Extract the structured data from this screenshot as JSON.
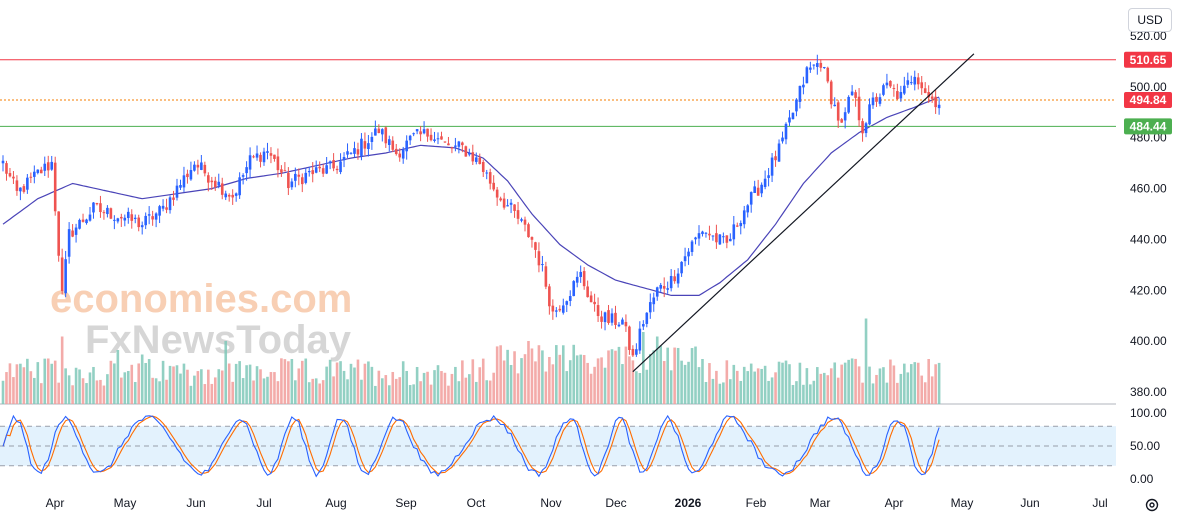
{
  "currency_button": "USD",
  "settings_icon": "gear-icon",
  "watermark": {
    "line1": "economies.com",
    "line2": "FxNewsToday"
  },
  "colors": {
    "up": "#2962ff",
    "down": "#ef5350",
    "ma": "#4a44b8",
    "resistance": "#f23645",
    "support": "#4caf50",
    "current": "#f57c00",
    "stoch_k": "#2962ff",
    "stoch_d": "#ff6d00",
    "vol_up": "#7fc8b8",
    "vol_down": "#f19c9a",
    "stoch_band": "#e3f2fd"
  },
  "chart_data": {
    "type": "candlestick",
    "price_axis": {
      "min": 380,
      "max": 520,
      "ticks": [
        380,
        400,
        420,
        440,
        460,
        480,
        500,
        520
      ],
      "tick_labels": [
        "380.00",
        "400.00",
        "420.00",
        "440.00",
        "460.00",
        "480.00",
        "500.00",
        "520.00"
      ]
    },
    "time_axis": {
      "labels": [
        "Apr",
        "May",
        "Jun",
        "Jul",
        "Aug",
        "Sep",
        "Oct",
        "Nov",
        "Dec",
        "2026",
        "Feb",
        "Mar",
        "Apr",
        "May",
        "Jun",
        "Jul"
      ]
    },
    "price_tags": [
      {
        "name": "resistance",
        "label": "510.65",
        "value": 510.65,
        "color": "#f23645"
      },
      {
        "name": "current",
        "label": "494.84",
        "value": 494.84,
        "color": "#f23645"
      },
      {
        "name": "support",
        "label": "484.44",
        "value": 484.44,
        "color": "#4caf50"
      }
    ],
    "horizontal_lines": [
      {
        "name": "resistance",
        "value": 510.65,
        "style": "solid",
        "color": "#f23645"
      },
      {
        "name": "current",
        "value": 494.84,
        "style": "dotted",
        "color": "#f57c00"
      },
      {
        "name": "support",
        "value": 484.44,
        "style": "solid",
        "color": "#4caf50"
      }
    ],
    "trendline": {
      "from": {
        "bar": 181,
        "price": 388
      },
      "to": {
        "bar": 279,
        "price": 513
      }
    },
    "price_anchors": [
      [
        0,
        470
      ],
      [
        4,
        458
      ],
      [
        10,
        466
      ],
      [
        14,
        470
      ],
      [
        17,
        418
      ],
      [
        19,
        442
      ],
      [
        26,
        452
      ],
      [
        34,
        449
      ],
      [
        40,
        446
      ],
      [
        46,
        452
      ],
      [
        55,
        470
      ],
      [
        60,
        464
      ],
      [
        66,
        457
      ],
      [
        71,
        471
      ],
      [
        76,
        475
      ],
      [
        82,
        462
      ],
      [
        88,
        466
      ],
      [
        95,
        468
      ],
      [
        103,
        477
      ],
      [
        108,
        483
      ],
      [
        113,
        474
      ],
      [
        118,
        480
      ],
      [
        123,
        482
      ],
      [
        128,
        476
      ],
      [
        132,
        476
      ],
      [
        137,
        470
      ],
      [
        142,
        458
      ],
      [
        147,
        450
      ],
      [
        152,
        440
      ],
      [
        155,
        428
      ],
      [
        158,
        411
      ],
      [
        162,
        418
      ],
      [
        166,
        426
      ],
      [
        170,
        412
      ],
      [
        174,
        408
      ],
      [
        178,
        408
      ],
      [
        181,
        393
      ],
      [
        184,
        408
      ],
      [
        188,
        420
      ],
      [
        192,
        424
      ],
      [
        197,
        436
      ],
      [
        201,
        444
      ],
      [
        205,
        440
      ],
      [
        208,
        438
      ],
      [
        213,
        452
      ],
      [
        218,
        462
      ],
      [
        223,
        475
      ],
      [
        227,
        490
      ],
      [
        231,
        506
      ],
      [
        235,
        510
      ],
      [
        238,
        496
      ],
      [
        241,
        484
      ],
      [
        244,
        498
      ],
      [
        247,
        484
      ],
      [
        250,
        494
      ],
      [
        254,
        500
      ],
      [
        258,
        496
      ],
      [
        262,
        506
      ],
      [
        266,
        496
      ],
      [
        269,
        494
      ]
    ],
    "ma_anchors": [
      [
        0,
        446
      ],
      [
        10,
        456
      ],
      [
        20,
        462
      ],
      [
        30,
        459
      ],
      [
        40,
        456
      ],
      [
        50,
        458
      ],
      [
        60,
        460
      ],
      [
        70,
        464
      ],
      [
        80,
        466
      ],
      [
        90,
        469
      ],
      [
        100,
        472
      ],
      [
        110,
        474
      ],
      [
        120,
        477
      ],
      [
        130,
        476
      ],
      [
        138,
        472
      ],
      [
        145,
        463
      ],
      [
        152,
        450
      ],
      [
        160,
        438
      ],
      [
        168,
        430
      ],
      [
        176,
        424
      ],
      [
        184,
        421
      ],
      [
        192,
        418
      ],
      [
        200,
        418
      ],
      [
        206,
        423
      ],
      [
        214,
        432
      ],
      [
        222,
        446
      ],
      [
        230,
        462
      ],
      [
        238,
        474
      ],
      [
        246,
        482
      ],
      [
        254,
        488
      ],
      [
        262,
        492
      ],
      [
        269,
        496
      ]
    ],
    "volume_spikes": [
      [
        17,
        0.75
      ],
      [
        33,
        0.6
      ],
      [
        40,
        0.55
      ],
      [
        64,
        0.7
      ],
      [
        151,
        0.7
      ],
      [
        184,
        0.8
      ],
      [
        188,
        0.75
      ],
      [
        248,
        0.95
      ],
      [
        266,
        0.5
      ]
    ],
    "stochastic": {
      "upper": 80,
      "mid": 50,
      "lower": 20,
      "axis_labels": [
        "100.00",
        "50.00",
        "0.00"
      ]
    }
  }
}
